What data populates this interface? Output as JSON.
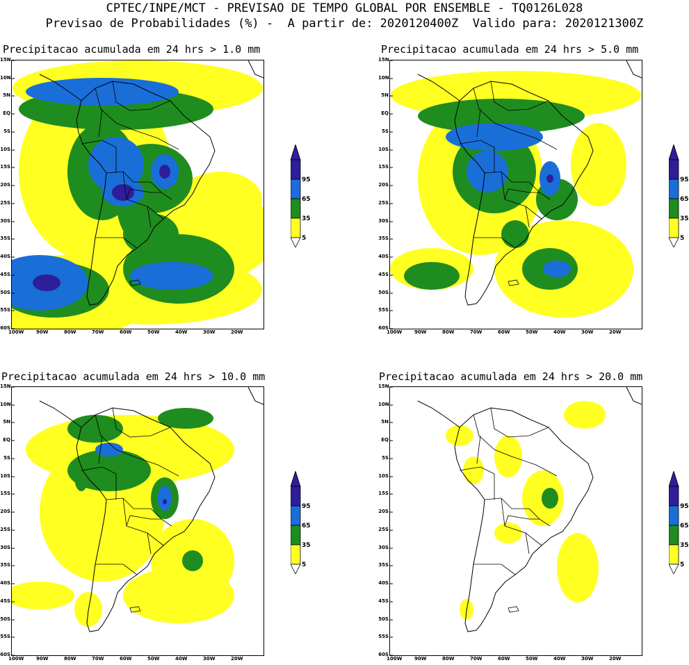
{
  "header": {
    "line1": "CPTEC/INPE/MCT - PREVISAO DE TEMPO GLOBAL POR ENSEMBLE - TQ0126L028",
    "line2": "Previsao de Probabilidades (%) -  A partir de: 2020120400Z  Valido para: 2020121300Z"
  },
  "axes": {
    "lat_labels": [
      "15N",
      "10N",
      "5N",
      "EQ",
      "5S",
      "10S",
      "15S",
      "20S",
      "25S",
      "30S",
      "35S",
      "40S",
      "45S",
      "50S",
      "55S",
      "60S"
    ],
    "lon_labels": [
      "100W",
      "90W",
      "80W",
      "70W",
      "60W",
      "50W",
      "40W",
      "30W",
      "20W"
    ]
  },
  "colorbar": {
    "levels": [
      "95",
      "65",
      "35",
      "5"
    ],
    "colors": {
      "p95": "#2e1e9a",
      "p65": "#1a6ed8",
      "p35": "#1f8c1f",
      "p5": "#ffff22"
    }
  },
  "panels": [
    {
      "id": "p1",
      "title": "Precipitacao acumulada em 24 hrs > 1.0 mm",
      "threshold": "1.0 mm",
      "coverage": "high"
    },
    {
      "id": "p2",
      "title": "Precipitacao acumulada em 24 hrs > 5.0 mm",
      "threshold": "5.0 mm",
      "coverage": "medium"
    },
    {
      "id": "p3",
      "title": "Precipitacao acumulada em 24 hrs > 10.0 mm",
      "threshold": "10.0 mm",
      "coverage": "low"
    },
    {
      "id": "p4",
      "title": "Precipitacao acumulada em 24 hrs > 20.0 mm",
      "threshold": "20.0 mm",
      "coverage": "minimal"
    }
  ]
}
